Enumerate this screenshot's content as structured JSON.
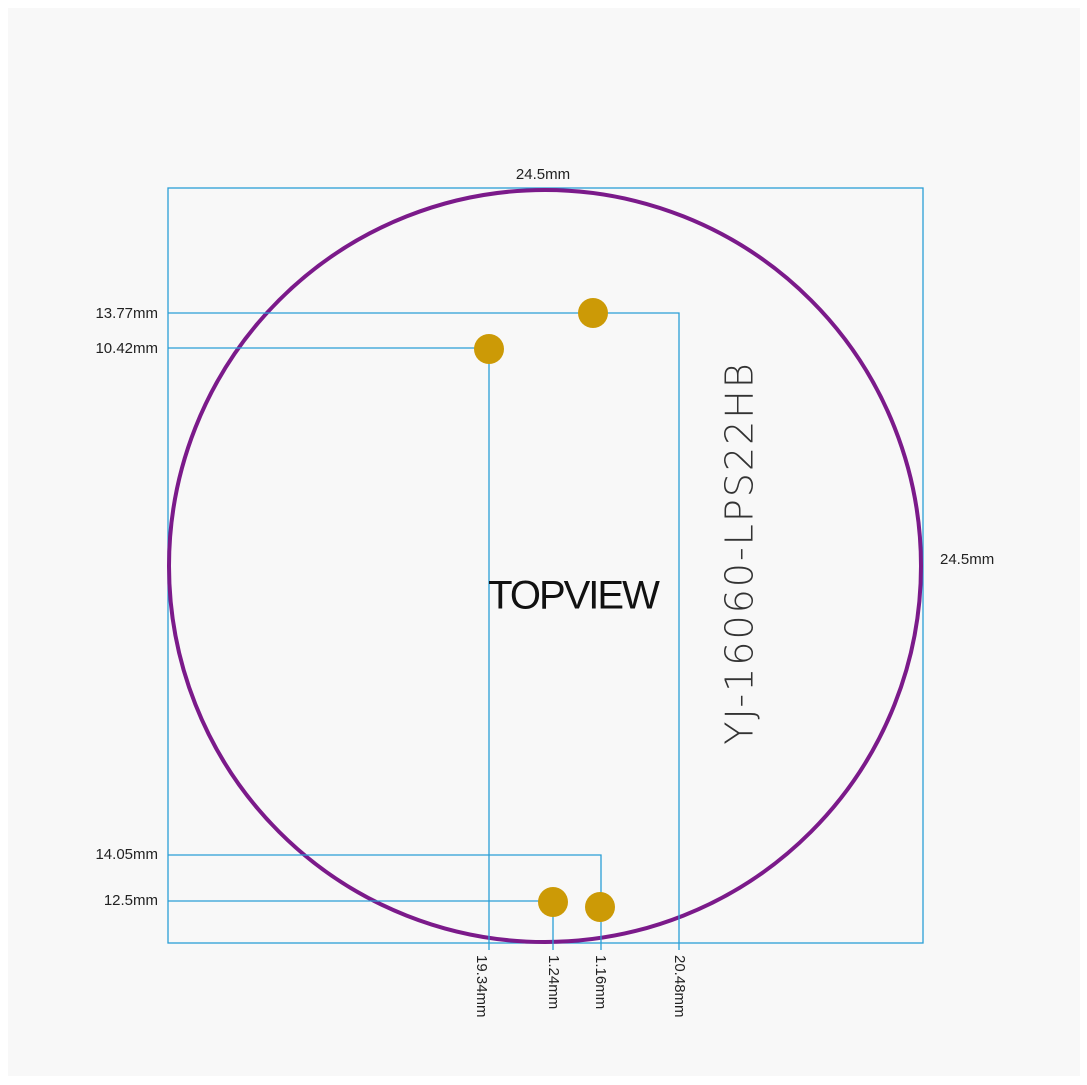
{
  "drawing": {
    "title": "TOPVIEW",
    "model": "YJ-16060-LPS22HB",
    "width_label": "24.5mm",
    "height_label": "24.5mm",
    "left_labels": [
      "13.77mm",
      "10.42mm",
      "14.05mm",
      "12.5mm"
    ],
    "bottom_labels": [
      "19.34mm",
      "1.24mm",
      "1.16mm",
      "20.48mm"
    ]
  }
}
